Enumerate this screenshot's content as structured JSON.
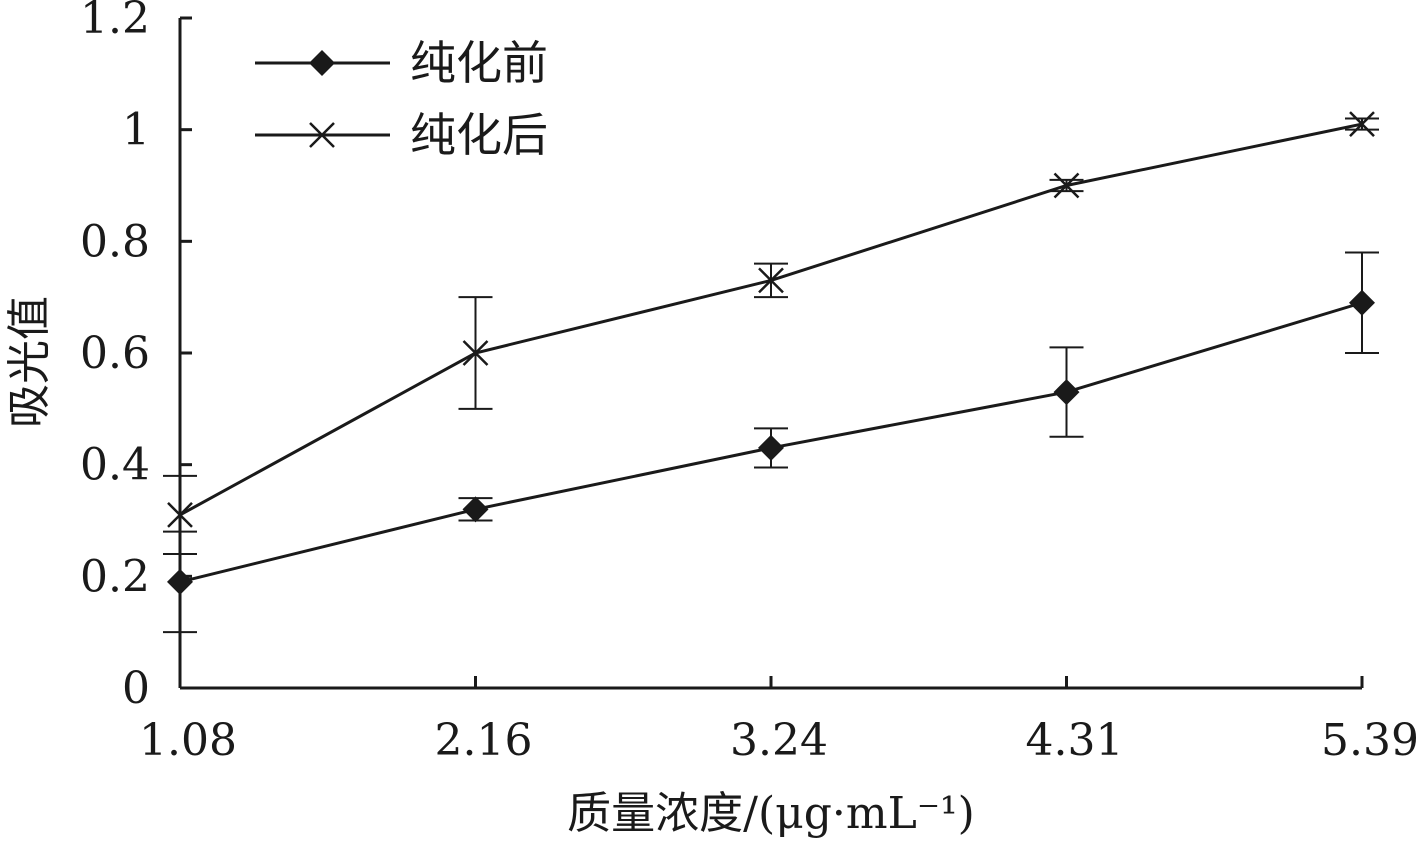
{
  "chart_data": {
    "type": "line",
    "title": "",
    "xlabel": "质量浓度/(μg·mL⁻¹)",
    "ylabel": "吸光值",
    "categories": [
      "1.08",
      "2.16",
      "3.24",
      "4.31",
      "5.39"
    ],
    "ylim": [
      0,
      1.2
    ],
    "yticks": [
      "0",
      "0.2",
      "0.4",
      "0.6",
      "0.8",
      "1",
      "1.2"
    ],
    "grid": false,
    "legend_position": "top-left",
    "series": [
      {
        "name": "纯化前",
        "marker": "diamond",
        "values": [
          0.19,
          0.32,
          0.43,
          0.53,
          0.69
        ],
        "error": [
          0.09,
          0.02,
          0.035,
          0.08,
          0.09
        ]
      },
      {
        "name": "纯化后",
        "marker": "x",
        "values": [
          0.31,
          0.6,
          0.73,
          0.9,
          1.01
        ],
        "error": [
          0.07,
          0.1,
          0.03,
          0.01,
          0.01
        ]
      }
    ],
    "colors": {
      "line": "#1a1a1a",
      "background": "#ffffff"
    }
  }
}
